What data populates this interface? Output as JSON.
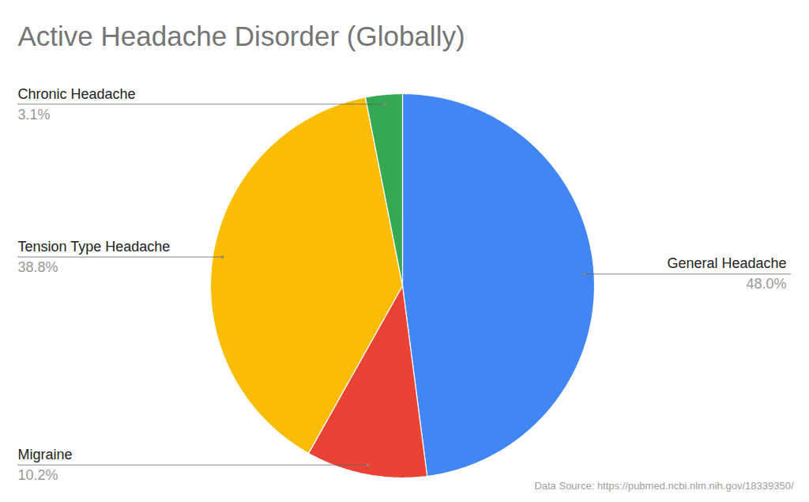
{
  "chart_data": {
    "type": "pie",
    "title": "Active Headache Disorder (Globally)",
    "caption": "Data Source: https://pubmed.ncbi.nlm.nih.gov/18339350/",
    "categories": [
      "General Headache",
      "Migraine",
      "Tension Type Headache",
      "Chronic Headache"
    ],
    "values": [
      48.0,
      10.2,
      38.8,
      3.1
    ],
    "value_labels": [
      "48.0%",
      "10.2%",
      "38.8%",
      "3.1%"
    ],
    "colors": [
      "#4285f4",
      "#ea4335",
      "#fbbc04",
      "#34a853"
    ],
    "data_labels": true
  }
}
